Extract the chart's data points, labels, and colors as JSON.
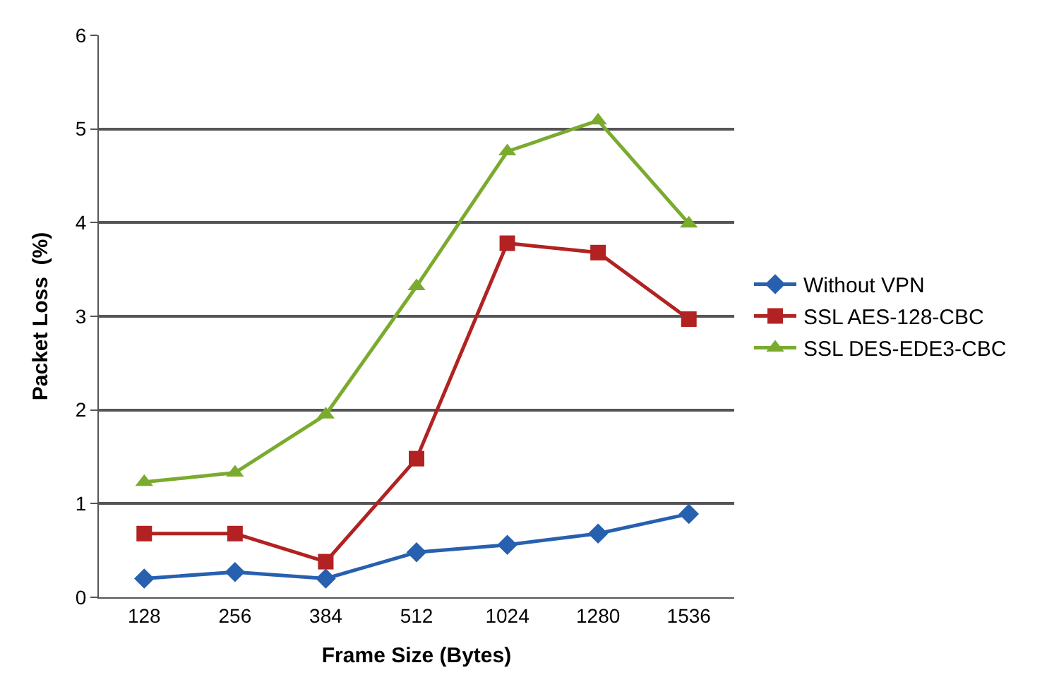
{
  "chart_data": {
    "type": "line",
    "xlabel": "Frame Size (Bytes)",
    "ylabel": "Packet Loss  (%)",
    "categories": [
      "128",
      "256",
      "384",
      "512",
      "1024",
      "1280",
      "1536"
    ],
    "ylim": [
      0,
      6
    ],
    "yticks": [
      0,
      1,
      2,
      3,
      4,
      5,
      6
    ],
    "grid": "y",
    "legend": "right",
    "series": [
      {
        "name": "Without VPN",
        "color": "#2860b0",
        "marker": "diamond",
        "values": [
          0.2,
          0.27,
          0.2,
          0.48,
          0.56,
          0.68,
          0.89
        ]
      },
      {
        "name": "SSL AES-128-CBC",
        "color": "#b22222",
        "marker": "square",
        "values": [
          0.68,
          0.68,
          0.38,
          1.48,
          3.78,
          3.68,
          2.97
        ]
      },
      {
        "name": "SSL DES-EDE3-CBC",
        "color": "#7aab2e",
        "marker": "triangle",
        "values": [
          1.23,
          1.33,
          1.95,
          3.32,
          4.76,
          5.09,
          3.99
        ]
      }
    ]
  }
}
